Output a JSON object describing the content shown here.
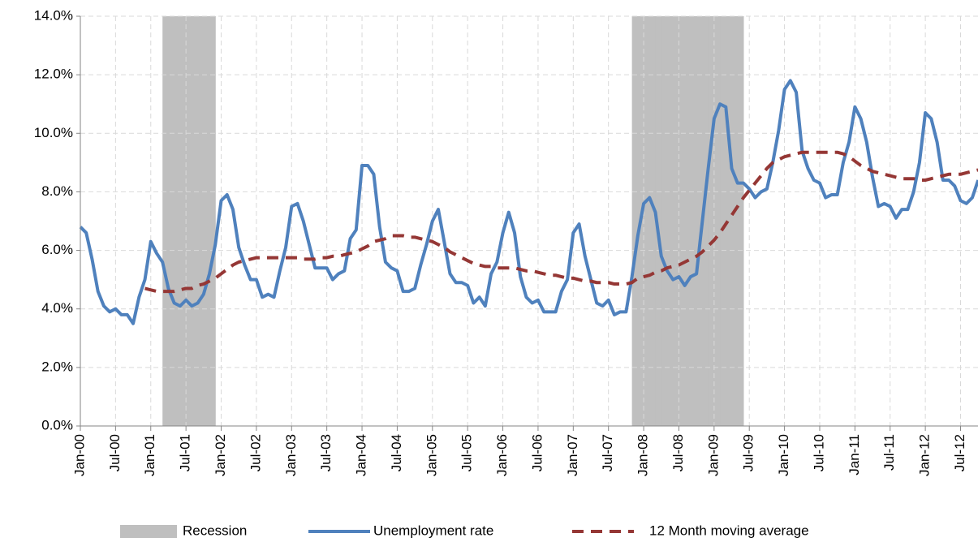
{
  "chart_data": {
    "type": "line",
    "categories": [
      "Jan-00",
      null,
      null,
      null,
      null,
      null,
      "Jul-00",
      null,
      null,
      null,
      null,
      null,
      "Jan-01",
      null,
      null,
      null,
      null,
      null,
      "Jul-01",
      null,
      null,
      null,
      null,
      null,
      "Jan-02",
      null,
      null,
      null,
      null,
      null,
      "Jul-02",
      null,
      null,
      null,
      null,
      null,
      "Jan-03",
      null,
      null,
      null,
      null,
      null,
      "Jul-03",
      null,
      null,
      null,
      null,
      null,
      "Jan-04",
      null,
      null,
      null,
      null,
      null,
      "Jul-04",
      null,
      null,
      null,
      null,
      null,
      "Jan-05",
      null,
      null,
      null,
      null,
      null,
      "Jul-05",
      null,
      null,
      null,
      null,
      null,
      "Jan-06",
      null,
      null,
      null,
      null,
      null,
      "Jul-06",
      null,
      null,
      null,
      null,
      null,
      "Jan-07",
      null,
      null,
      null,
      null,
      null,
      "Jul-07",
      null,
      null,
      null,
      null,
      null,
      "Jan-08",
      null,
      null,
      null,
      null,
      null,
      "Jul-08",
      null,
      null,
      null,
      null,
      null,
      "Jan-09",
      null,
      null,
      null,
      null,
      null,
      "Jul-09",
      null,
      null,
      null,
      null,
      null,
      "Jan-10",
      null,
      null,
      null,
      null,
      null,
      "Jul-10",
      null,
      null,
      null,
      null,
      null,
      "Jan-11",
      null,
      null,
      null,
      null,
      null,
      "Jul-11",
      null,
      null,
      null,
      null,
      null,
      "Jan-12",
      null,
      null,
      null,
      null,
      null,
      "Jul-12",
      null,
      null,
      null
    ],
    "recession": {
      "name": "Recession",
      "color": "#bfbfbf",
      "values": [
        0,
        0,
        0,
        0,
        0,
        0,
        0,
        0,
        0,
        0,
        0,
        0,
        0,
        0,
        1,
        1,
        1,
        1,
        1,
        1,
        1,
        1,
        1,
        0,
        0,
        0,
        0,
        0,
        0,
        0,
        0,
        0,
        0,
        0,
        0,
        0,
        0,
        0,
        0,
        0,
        0,
        0,
        0,
        0,
        0,
        0,
        0,
        0,
        0,
        0,
        0,
        0,
        0,
        0,
        0,
        0,
        0,
        0,
        0,
        0,
        0,
        0,
        0,
        0,
        0,
        0,
        0,
        0,
        0,
        0,
        0,
        0,
        0,
        0,
        0,
        0,
        0,
        0,
        0,
        0,
        0,
        0,
        0,
        0,
        0,
        0,
        0,
        0,
        0,
        0,
        0,
        0,
        0,
        0,
        1,
        1,
        1,
        1,
        1,
        1,
        1,
        1,
        1,
        1,
        1,
        1,
        1,
        1,
        1,
        1,
        1,
        1,
        1,
        0,
        0,
        0,
        0,
        0,
        0,
        0,
        0,
        0,
        0,
        0,
        0,
        0,
        0,
        0,
        0,
        0,
        0,
        0,
        0,
        0,
        0,
        0,
        0,
        0,
        0,
        0,
        0,
        0,
        0,
        0,
        0,
        0,
        0,
        0,
        0,
        0,
        0,
        0,
        0,
        0
      ]
    },
    "series": [
      {
        "name": "Unemployment rate",
        "color": "#4f81bd",
        "line_style": "solid",
        "values": [
          6.8,
          6.6,
          5.7,
          4.6,
          4.1,
          3.9,
          4.0,
          3.8,
          3.8,
          3.5,
          4.4,
          5.0,
          6.3,
          5.9,
          5.6,
          4.7,
          4.2,
          4.1,
          4.3,
          4.1,
          4.2,
          4.5,
          5.2,
          6.2,
          7.7,
          7.9,
          7.4,
          6.1,
          5.5,
          5.0,
          5.0,
          4.4,
          4.5,
          4.4,
          5.3,
          6.1,
          7.5,
          7.6,
          7.0,
          6.2,
          5.4,
          5.4,
          5.4,
          5.0,
          5.2,
          5.3,
          6.4,
          6.7,
          8.9,
          8.9,
          8.6,
          6.8,
          5.6,
          5.4,
          5.3,
          4.6,
          4.6,
          4.7,
          5.5,
          6.2,
          7.0,
          7.4,
          6.3,
          5.2,
          4.9,
          4.9,
          4.8,
          4.2,
          4.4,
          4.1,
          5.2,
          5.6,
          6.6,
          7.3,
          6.6,
          5.1,
          4.4,
          4.2,
          4.3,
          3.9,
          3.9,
          3.9,
          4.6,
          5.0,
          6.6,
          6.9,
          5.8,
          5.0,
          4.2,
          4.1,
          4.3,
          3.8,
          3.9,
          3.9,
          5.1,
          6.5,
          7.6,
          7.8,
          7.3,
          5.8,
          5.3,
          5.0,
          5.1,
          4.8,
          5.1,
          5.2,
          7.0,
          8.8,
          10.5,
          11.0,
          10.9,
          8.8,
          8.3,
          8.3,
          8.1,
          7.8,
          8.0,
          8.1,
          9.0,
          10.1,
          11.5,
          11.8,
          11.4,
          9.4,
          8.8,
          8.4,
          8.3,
          7.8,
          7.9,
          7.9,
          9.0,
          9.7,
          10.9,
          10.5,
          9.7,
          8.5,
          7.5,
          7.6,
          7.5,
          7.1,
          7.4,
          7.4,
          8.0,
          9.0,
          10.7,
          10.5,
          9.7,
          8.4,
          8.4,
          8.2,
          7.7,
          7.6,
          7.8,
          8.4
        ]
      },
      {
        "name": "12 Month moving average",
        "color": "#953735",
        "line_style": "dashed",
        "values": [
          null,
          null,
          null,
          null,
          null,
          null,
          null,
          null,
          null,
          null,
          null,
          4.7,
          4.65,
          4.6,
          4.6,
          4.6,
          4.6,
          4.65,
          4.7,
          4.7,
          4.8,
          4.85,
          4.95,
          5.05,
          5.2,
          5.35,
          5.5,
          5.6,
          5.65,
          5.7,
          5.75,
          5.75,
          5.75,
          5.75,
          5.75,
          5.75,
          5.75,
          5.75,
          5.7,
          5.7,
          5.7,
          5.75,
          5.75,
          5.8,
          5.8,
          5.85,
          5.9,
          5.95,
          6.05,
          6.15,
          6.3,
          6.35,
          6.4,
          6.5,
          6.5,
          6.5,
          6.45,
          6.45,
          6.4,
          6.35,
          6.3,
          6.2,
          6.1,
          5.95,
          5.85,
          5.75,
          5.65,
          5.55,
          5.5,
          5.45,
          5.45,
          5.4,
          5.4,
          5.4,
          5.4,
          5.35,
          5.3,
          5.3,
          5.25,
          5.2,
          5.15,
          5.15,
          5.1,
          5.05,
          5.05,
          5.0,
          4.95,
          4.95,
          4.9,
          4.9,
          4.9,
          4.85,
          4.85,
          4.85,
          4.9,
          5.05,
          5.1,
          5.15,
          5.25,
          5.3,
          5.4,
          5.45,
          5.5,
          5.6,
          5.7,
          5.8,
          5.95,
          6.15,
          6.35,
          6.6,
          6.9,
          7.2,
          7.5,
          7.8,
          8.05,
          8.3,
          8.55,
          8.8,
          9.0,
          9.1,
          9.2,
          9.25,
          9.3,
          9.35,
          9.35,
          9.35,
          9.35,
          9.35,
          9.35,
          9.35,
          9.3,
          9.2,
          9.05,
          8.9,
          8.8,
          8.7,
          8.65,
          8.6,
          8.55,
          8.5,
          8.45,
          8.45,
          8.45,
          8.4,
          8.4,
          8.45,
          8.5,
          8.55,
          8.6,
          8.6,
          8.6,
          8.65,
          8.7,
          8.75
        ]
      }
    ],
    "ylim": [
      0,
      14
    ],
    "yticks": [
      {
        "value": 0,
        "label": "0.0%"
      },
      {
        "value": 2,
        "label": "2.0%"
      },
      {
        "value": 4,
        "label": "4.0%"
      },
      {
        "value": 6,
        "label": "6.0%"
      },
      {
        "value": 8,
        "label": "8.0%"
      },
      {
        "value": 10,
        "label": "10.0%"
      },
      {
        "value": 12,
        "label": "12.0%"
      },
      {
        "value": 14,
        "label": "14.0%"
      }
    ],
    "grid": true,
    "legend": "bottom"
  }
}
